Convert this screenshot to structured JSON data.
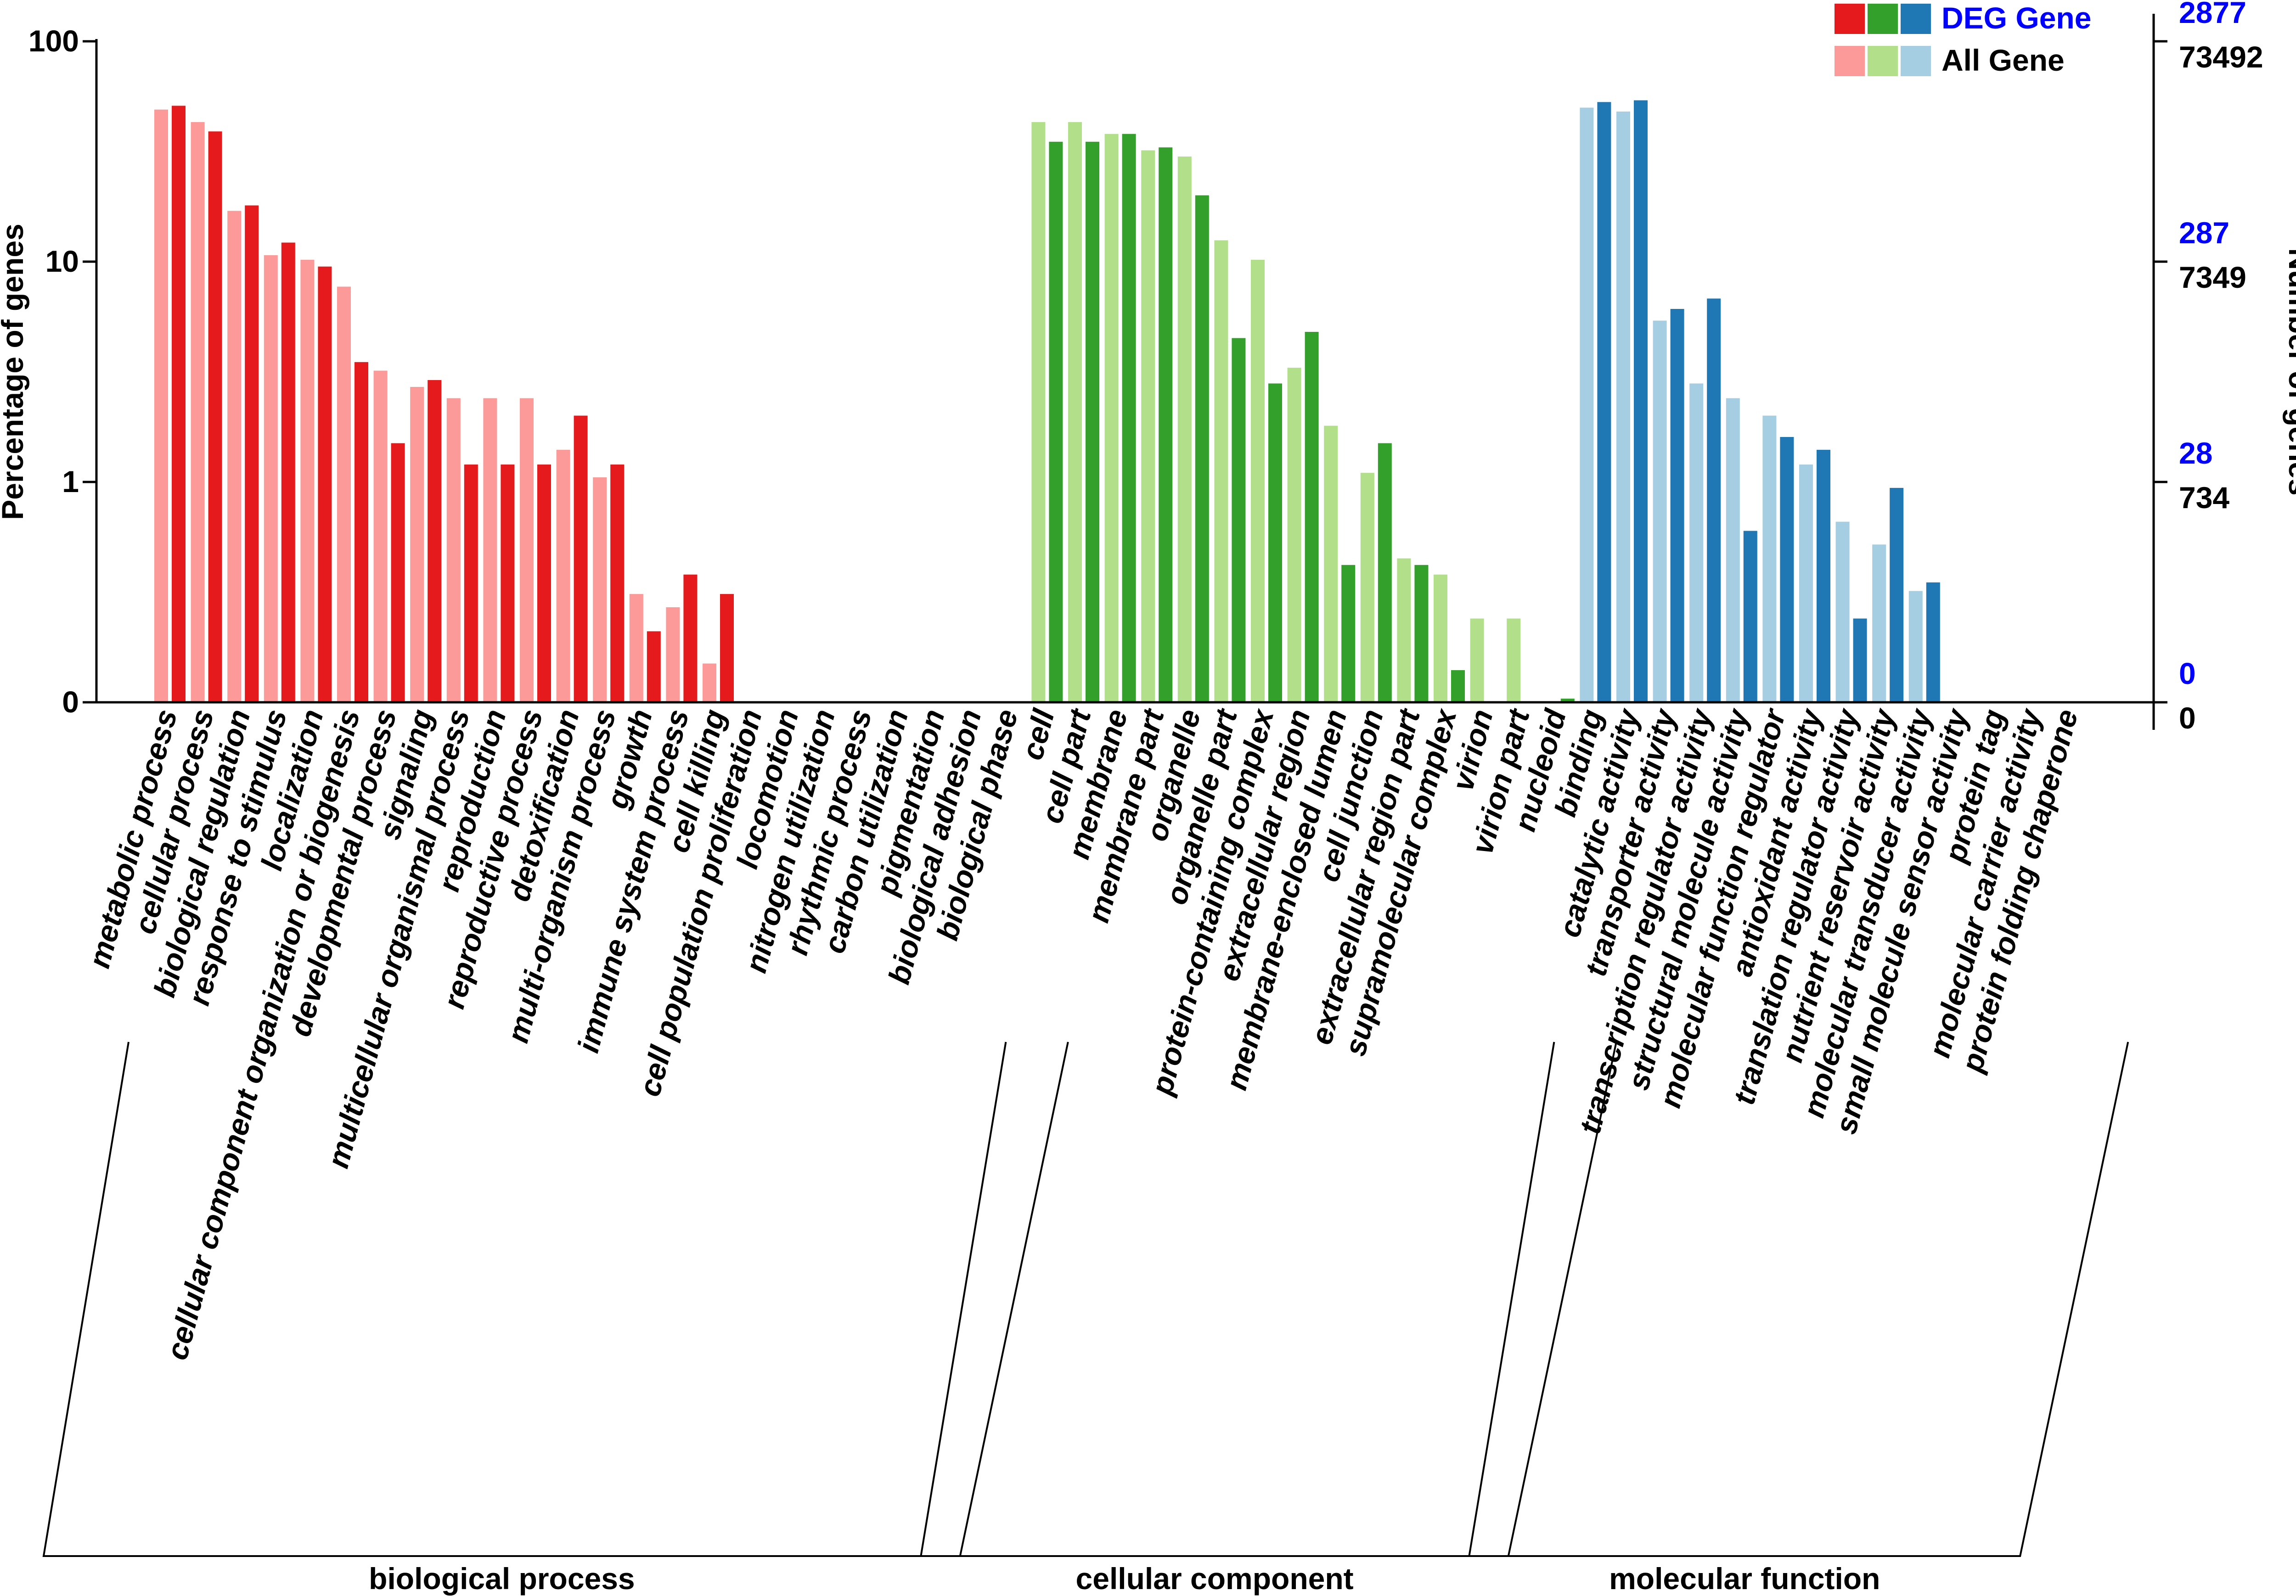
{
  "chart_data": {
    "type": "bar",
    "y_axis_left": {
      "title": "Percentage of genes",
      "scale": "log",
      "ticks": [
        "100",
        "10",
        "1",
        "0"
      ],
      "tick_values": [
        100,
        10,
        1,
        0.1
      ]
    },
    "y_axis_right": {
      "title": "Number of genes",
      "deg_ticks": [
        "2877",
        "287",
        "28",
        "0"
      ],
      "all_ticks": [
        "73492",
        "7349",
        "734",
        "0"
      ],
      "deg_color": "#0000ff",
      "all_color": "#000000"
    },
    "legend": {
      "placement": "top-right",
      "entries": [
        {
          "label": "DEG Gene",
          "colors": [
            "#e41a1c",
            "#33a02c",
            "#1f78b4"
          ],
          "text_color": "#0000ff"
        },
        {
          "label": "All Gene",
          "colors": [
            "#fb9a99",
            "#b2df8a",
            "#a6cee3"
          ],
          "text_color": "#000000"
        }
      ]
    },
    "series": [
      {
        "name": "All Gene"
      },
      {
        "name": "DEG Gene"
      }
    ],
    "groups": [
      {
        "name": "biological process",
        "deg_color": "#e41a1c",
        "all_color": "#fb9a99",
        "categories": [
          {
            "label": "metabolic process",
            "all": 49,
            "deg": 51
          },
          {
            "label": "cellular process",
            "all": 43,
            "deg": 39
          },
          {
            "label": "biological regulation",
            "all": 17,
            "deg": 18
          },
          {
            "label": "response to stimulus",
            "all": 10.7,
            "deg": 12.2
          },
          {
            "label": "localization",
            "all": 10.2,
            "deg": 9.5
          },
          {
            "label": "cellular component organization or biogenesis",
            "all": 7.7,
            "deg": 3.5
          },
          {
            "label": "developmental process",
            "all": 3.2,
            "deg": 1.5
          },
          {
            "label": "signaling",
            "all": 2.7,
            "deg": 2.9
          },
          {
            "label": "multicellular organismal process",
            "all": 2.4,
            "deg": 1.2
          },
          {
            "label": "reproduction",
            "all": 2.4,
            "deg": 1.2
          },
          {
            "label": "reproductive process",
            "all": 2.4,
            "deg": 1.2
          },
          {
            "label": "detoxification",
            "all": 1.4,
            "deg": 2.0
          },
          {
            "label": "multi-organism process",
            "all": 1.05,
            "deg": 1.2
          },
          {
            "label": "growth",
            "all": 0.31,
            "deg": 0.21
          },
          {
            "label": "immune system process",
            "all": 0.27,
            "deg": 0.38
          },
          {
            "label": "cell killing",
            "all": 0.15,
            "deg": 0.31
          },
          {
            "label": "cell population proliferation",
            "all": 0,
            "deg": 0
          },
          {
            "label": "locomotion",
            "all": 0,
            "deg": 0
          },
          {
            "label": "nitrogen utilization",
            "all": 0,
            "deg": 0
          },
          {
            "label": "rhythmic process",
            "all": 0,
            "deg": 0
          },
          {
            "label": "carbon utilization",
            "all": 0,
            "deg": 0
          },
          {
            "label": "pigmentation",
            "all": 0,
            "deg": 0
          },
          {
            "label": "biological adhesion",
            "all": 0,
            "deg": 0
          },
          {
            "label": "biological phase",
            "all": 0,
            "deg": 0
          }
        ]
      },
      {
        "name": "cellular component",
        "deg_color": "#33a02c",
        "all_color": "#b2df8a",
        "categories": [
          {
            "label": "cell",
            "all": 43,
            "deg": 35
          },
          {
            "label": "cell part",
            "all": 43,
            "deg": 35
          },
          {
            "label": "membrane",
            "all": 38,
            "deg": 38
          },
          {
            "label": "membrane part",
            "all": 32,
            "deg": 33
          },
          {
            "label": "organelle",
            "all": 30,
            "deg": 20
          },
          {
            "label": "organelle part",
            "all": 12.5,
            "deg": 4.5
          },
          {
            "label": "protein-containing complex",
            "all": 10.2,
            "deg": 2.8
          },
          {
            "label": "extracellular region",
            "all": 3.3,
            "deg": 4.8
          },
          {
            "label": "membrane-enclosed lumen",
            "all": 1.8,
            "deg": 0.42
          },
          {
            "label": "cell junction",
            "all": 1.1,
            "deg": 1.5
          },
          {
            "label": "extracellular region part",
            "all": 0.45,
            "deg": 0.42
          },
          {
            "label": "supramolecular complex",
            "all": 0.38,
            "deg": 0.14
          },
          {
            "label": "virion",
            "all": 0.24,
            "deg": 0
          },
          {
            "label": "virion part",
            "all": 0.24,
            "deg": 0
          },
          {
            "label": "nucleoid",
            "all": 0,
            "deg": 0.1
          }
        ]
      },
      {
        "name": "molecular function",
        "deg_color": "#1f78b4",
        "all_color": "#a6cee3",
        "categories": [
          {
            "label": "binding",
            "all": 50,
            "deg": 53
          },
          {
            "label": "catalytic activity",
            "all": 48,
            "deg": 54
          },
          {
            "label": "transporter activity",
            "all": 5.4,
            "deg": 6.1
          },
          {
            "label": "transcription regulator activity",
            "all": 2.8,
            "deg": 6.8
          },
          {
            "label": "structural molecule activity",
            "all": 2.4,
            "deg": 0.6
          },
          {
            "label": "molecular function regulator",
            "all": 2.0,
            "deg": 1.6
          },
          {
            "label": "antioxidant activity",
            "all": 1.2,
            "deg": 1.4
          },
          {
            "label": "translation regulator activity",
            "all": 0.66,
            "deg": 0.24
          },
          {
            "label": "nutrient reservoir activity",
            "all": 0.52,
            "deg": 0.94
          },
          {
            "label": "molecular transducer activity",
            "all": 0.32,
            "deg": 0.35
          },
          {
            "label": "small molecule sensor activity",
            "all": 0,
            "deg": 0
          },
          {
            "label": "protein tag",
            "all": 0,
            "deg": 0
          },
          {
            "label": "molecular carrier activity",
            "all": 0,
            "deg": 0
          },
          {
            "label": "protein folding chaperone",
            "all": 0,
            "deg": 0
          }
        ]
      }
    ]
  }
}
